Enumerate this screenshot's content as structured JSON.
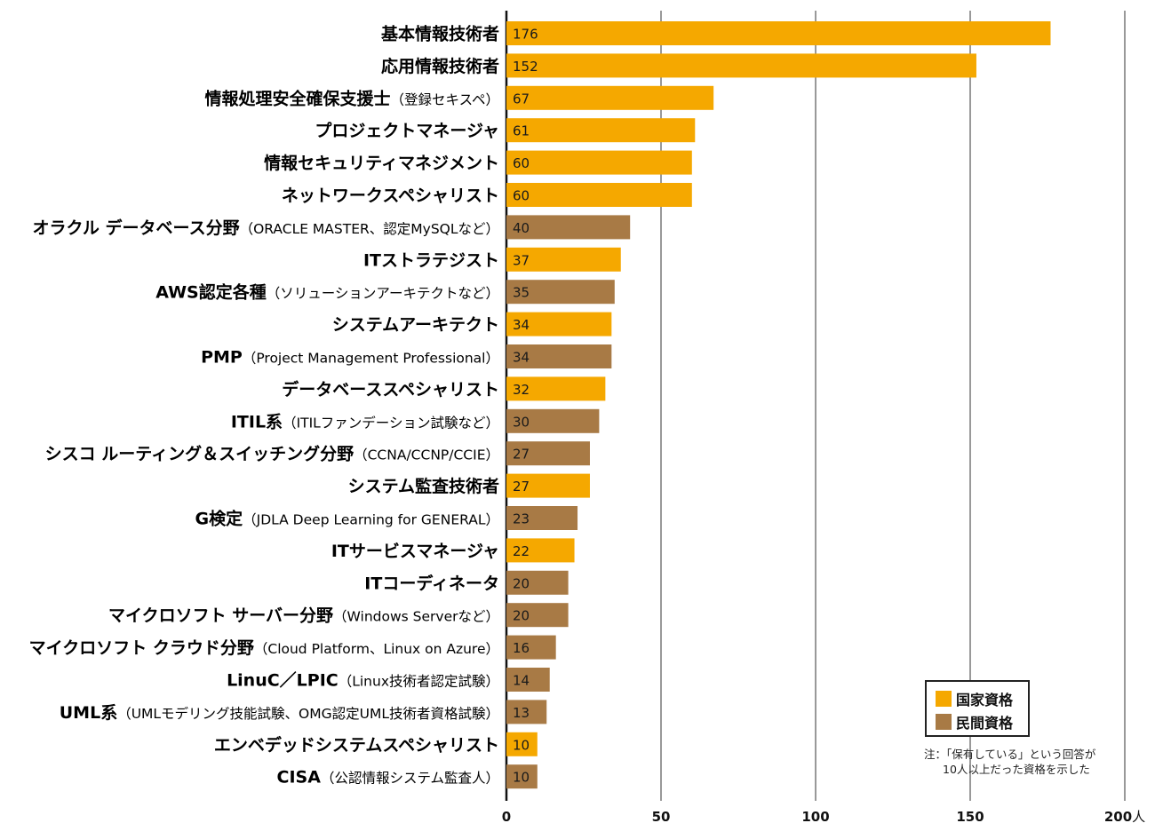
{
  "chart_data": {
    "type": "bar",
    "orientation": "horizontal",
    "categories": [
      {
        "main": "基本情報技術者",
        "sub": "",
        "value": 176,
        "group": 0
      },
      {
        "main": "応用情報技術者",
        "sub": "",
        "value": 152,
        "group": 0
      },
      {
        "main": "情報処理安全確保支援士",
        "sub": "（登録セキスペ）",
        "value": 67,
        "group": 0
      },
      {
        "main": "プロジェクトマネージャ",
        "sub": "",
        "value": 61,
        "group": 0
      },
      {
        "main": "情報セキュリティマネジメント",
        "sub": "",
        "value": 60,
        "group": 0
      },
      {
        "main": "ネットワークスペシャリスト",
        "sub": "",
        "value": 60,
        "group": 0
      },
      {
        "main": "オラクル データベース分野",
        "sub": "（ORACLE MASTER、認定MySQLなど）",
        "value": 40,
        "group": 1
      },
      {
        "main": "ITストラテジスト",
        "sub": "",
        "value": 37,
        "group": 0
      },
      {
        "main": "AWS認定各種",
        "sub": "（ソリューションアーキテクトなど）",
        "value": 35,
        "group": 1
      },
      {
        "main": "システムアーキテクト",
        "sub": "",
        "value": 34,
        "group": 0
      },
      {
        "main": "PMP",
        "sub": "（Project Management Professional）",
        "value": 34,
        "group": 1
      },
      {
        "main": "データベーススペシャリスト",
        "sub": "",
        "value": 32,
        "group": 0
      },
      {
        "main": "ITIL系",
        "sub": "（ITILファンデーション試験など）",
        "value": 30,
        "group": 1
      },
      {
        "main": "シスコ ルーティング＆スイッチング分野",
        "sub": "（CCNA/CCNP/CCIE）",
        "value": 27,
        "group": 1
      },
      {
        "main": "システム監査技術者",
        "sub": "",
        "value": 27,
        "group": 0
      },
      {
        "main": "G検定",
        "sub": "（JDLA Deep Learning for GENERAL）",
        "value": 23,
        "group": 1
      },
      {
        "main": "ITサービスマネージャ",
        "sub": "",
        "value": 22,
        "group": 0
      },
      {
        "main": "ITコーディネータ",
        "sub": "",
        "value": 20,
        "group": 1
      },
      {
        "main": "マイクロソフト サーバー分野",
        "sub": "（Windows Serverなど）",
        "value": 20,
        "group": 1
      },
      {
        "main": "マイクロソフト クラウド分野",
        "sub": "（Cloud Platform、Linux on Azure）",
        "value": 16,
        "group": 1
      },
      {
        "main": "LinuC／LPIC",
        "sub": "（Linux技術者認定試験）",
        "value": 14,
        "group": 1
      },
      {
        "main": "UML系",
        "sub": "（UMLモデリング技能試験、OMG認定UML技術者資格試験）",
        "value": 13,
        "group": 1
      },
      {
        "main": "エンベデッドシステムスペシャリスト",
        "sub": "",
        "value": 10,
        "group": 0
      },
      {
        "main": "CISA",
        "sub": "（公認情報システム監査人）",
        "value": 10,
        "group": 1
      }
    ],
    "series": [
      {
        "name": "国家資格",
        "color": "#f5a800"
      },
      {
        "name": "民間資格",
        "color": "#a87a45"
      }
    ],
    "x_ticks": [
      0,
      50,
      100,
      150,
      200
    ],
    "x_unit": "人",
    "xlim": [
      0,
      200
    ],
    "grid": true,
    "legend_position": "bottom-right"
  },
  "legend": {
    "items": [
      {
        "label": "国家資格",
        "color": "#f5a800"
      },
      {
        "label": "民間資格",
        "color": "#a87a45"
      }
    ]
  },
  "note": {
    "line1": "注：「保有している」という回答が",
    "line2": "10人以上だった資格を示した"
  }
}
